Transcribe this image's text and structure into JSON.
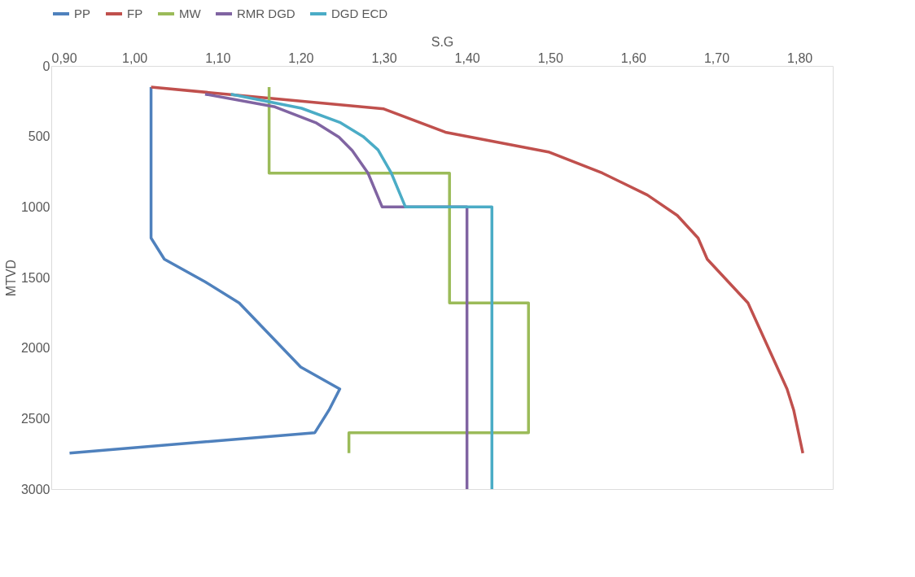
{
  "chart_data": {
    "type": "line",
    "xlabel": "S.G",
    "ylabel": "MTVD",
    "legend": "top",
    "grid": false,
    "marker": "none",
    "line_style": "solid",
    "xlim": [
      0.9,
      1.84
    ],
    "ylim": [
      3000,
      0
    ],
    "xticks": [
      {
        "value": 0.9,
        "label": "0,90"
      },
      {
        "value": 1.0,
        "label": "1,00"
      },
      {
        "value": 1.1,
        "label": "1,10"
      },
      {
        "value": 1.2,
        "label": "1,20"
      },
      {
        "value": 1.3,
        "label": "1,30"
      },
      {
        "value": 1.4,
        "label": "1,40"
      },
      {
        "value": 1.5,
        "label": "1,50"
      },
      {
        "value": 1.6,
        "label": "1,60"
      },
      {
        "value": 1.7,
        "label": "1,70"
      },
      {
        "value": 1.8,
        "label": "1,80"
      }
    ],
    "yticks": [
      0,
      500,
      1000,
      1500,
      2000,
      2500,
      3000
    ],
    "series": [
      {
        "name": "PP",
        "color": "#4f81bd",
        "x": [
          1.02,
          1.02,
          1.036,
          1.085,
          1.126,
          1.2,
          1.247,
          1.234,
          1.217,
          0.922
        ],
        "values": [
          150,
          1220,
          1370,
          1530,
          1680,
          2135,
          2290,
          2440,
          2600,
          2745
        ]
      },
      {
        "name": "FP",
        "color": "#c0504d",
        "x": [
          1.02,
          1.3,
          1.374,
          1.498,
          1.563,
          1.617,
          1.653,
          1.678,
          1.689,
          1.738,
          1.785,
          1.793,
          1.804
        ],
        "values": [
          150,
          305,
          470,
          610,
          760,
          915,
          1060,
          1220,
          1370,
          1680,
          2290,
          2440,
          2745
        ]
      },
      {
        "name": "MW",
        "color": "#9bbb59",
        "x": [
          1.162,
          1.162,
          1.379,
          1.379,
          1.474,
          1.474,
          1.258,
          1.258
        ],
        "values": [
          150,
          760,
          760,
          1680,
          1680,
          2600,
          2600,
          2745
        ]
      },
      {
        "name": "RMR DGD",
        "color": "#8064a2",
        "x": [
          1.085,
          1.169,
          1.219,
          1.246,
          1.262,
          1.281,
          1.298,
          1.4,
          1.4
        ],
        "values": [
          200,
          290,
          405,
          505,
          600,
          760,
          1000,
          1000,
          3000
        ]
      },
      {
        "name": "DGD ECD",
        "color": "#4bacc6",
        "x": [
          1.116,
          1.201,
          1.247,
          1.275,
          1.293,
          1.309,
          1.326,
          1.43,
          1.43
        ],
        "values": [
          200,
          300,
          400,
          500,
          595,
          760,
          1000,
          1000,
          3000
        ]
      }
    ]
  }
}
